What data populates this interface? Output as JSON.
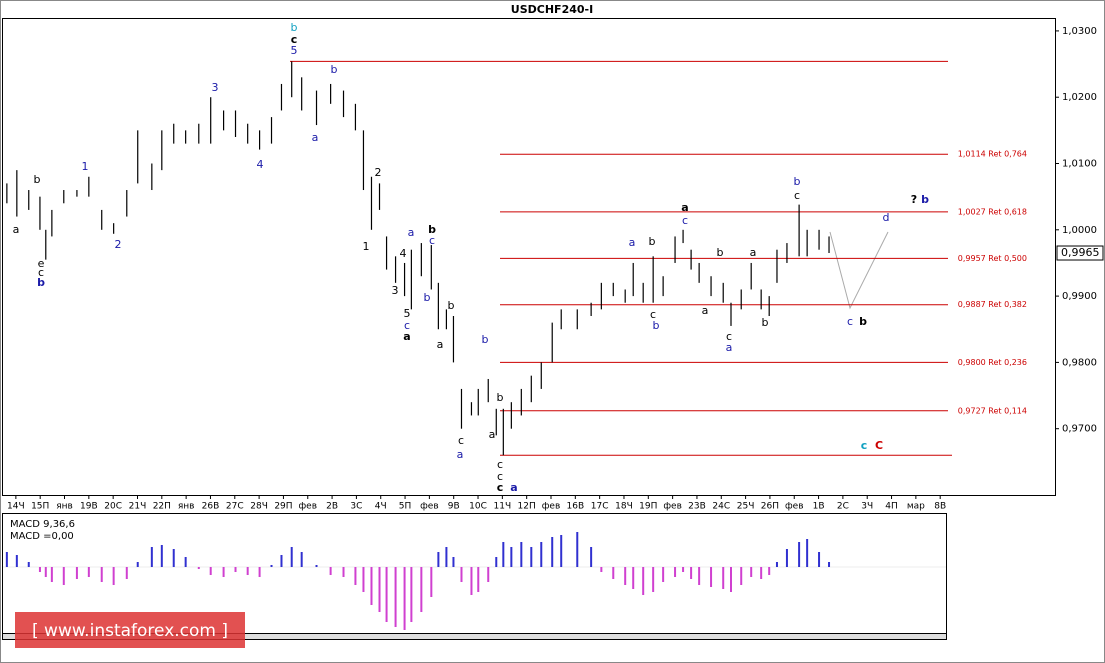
{
  "chart_data": {
    "type": "ohlc",
    "title": "USDCHF240-I",
    "xlim": [
      -0.57,
      42.72
    ],
    "ylim": [
      0.96,
      1.0324
    ],
    "xticks": [
      {
        "value": 0,
        "label": "14Ч"
      },
      {
        "value": 1,
        "label": "15П"
      },
      {
        "value": 2,
        "label": "янв"
      },
      {
        "value": 3,
        "label": "19В"
      },
      {
        "value": 4,
        "label": "20С"
      },
      {
        "value": 5,
        "label": "21Ч"
      },
      {
        "value": 6,
        "label": "22П"
      },
      {
        "value": 7,
        "label": "янв"
      },
      {
        "value": 8,
        "label": "26В"
      },
      {
        "value": 9,
        "label": "27С"
      },
      {
        "value": 10,
        "label": "28Ч"
      },
      {
        "value": 11,
        "label": "29П"
      },
      {
        "value": 12,
        "label": "фев"
      },
      {
        "value": 13,
        "label": "2В"
      },
      {
        "value": 14,
        "label": "3С"
      },
      {
        "value": 15,
        "label": "4Ч"
      },
      {
        "value": 16,
        "label": "5П"
      },
      {
        "value": 17,
        "label": "фев"
      },
      {
        "value": 18,
        "label": "9В"
      },
      {
        "value": 19,
        "label": "10С"
      },
      {
        "value": 20,
        "label": "11Ч"
      },
      {
        "value": 21,
        "label": "12П"
      },
      {
        "value": 22,
        "label": "фев"
      },
      {
        "value": 23,
        "label": "16В"
      },
      {
        "value": 24,
        "label": "17С"
      },
      {
        "value": 25,
        "label": "18Ч"
      },
      {
        "value": 26,
        "label": "19П"
      },
      {
        "value": 27,
        "label": "фев"
      },
      {
        "value": 28,
        "label": "23В"
      },
      {
        "value": 29,
        "label": "24С"
      },
      {
        "value": 30,
        "label": "25Ч"
      },
      {
        "value": 31,
        "label": "26П"
      },
      {
        "value": 32,
        "label": "фев"
      },
      {
        "value": 33,
        "label": "1В"
      },
      {
        "value": 34,
        "label": "2С"
      },
      {
        "value": 35,
        "label": "3Ч"
      },
      {
        "value": 36,
        "label": "4П"
      },
      {
        "value": 37,
        "label": "мар"
      },
      {
        "value": 38,
        "label": "8В"
      }
    ],
    "yticks": [
      {
        "value": 1.03,
        "label": "1,0300"
      },
      {
        "value": 1.02,
        "label": "1,0200"
      },
      {
        "value": 1.01,
        "label": "1,0100"
      },
      {
        "value": 1.0,
        "label": "1,0000"
      },
      {
        "value": 0.99,
        "label": "0,9900"
      },
      {
        "value": 0.98,
        "label": "0,9800"
      },
      {
        "value": 0.97,
        "label": "0,9700"
      }
    ],
    "last_price": {
      "value": 0.9965,
      "label": "0,9965"
    },
    "bar_color": "#000000",
    "level_color": "#cc0000",
    "levels": [
      {
        "value": 1.0254
      },
      {
        "value": 1.0114,
        "label": "1,0114 Ret 0,764"
      },
      {
        "value": 1.0027,
        "label": "1,0027 Ret 0,618"
      },
      {
        "value": 0.9957,
        "label": "0,9957 Ret 0,500"
      },
      {
        "value": 0.9887,
        "label": "0,9887 Ret 0,382"
      },
      {
        "value": 0.98,
        "label": "0,9800 Ret 0,236"
      },
      {
        "value": 0.9727,
        "label": "0,9727 Ret 0,114"
      },
      {
        "value": 0.966
      }
    ],
    "macd_title": "MACD 9,36,6",
    "macd_value": "MACD =0,00",
    "macd_ylim": [
      -0.0065,
      0.0052
    ],
    "macd_color_up": "#3030d0",
    "macd_color_down": "#d040d0",
    "bars": [
      {
        "x": -0.37,
        "high": 1.007,
        "low": 1.004,
        "macd": 0.0015
      },
      {
        "x": 0.04,
        "high": 1.009,
        "low": 1.002,
        "macd": 0.0012
      },
      {
        "x": 0.53,
        "high": 1.006,
        "low": 1.003,
        "macd": 0.0005
      },
      {
        "x": 0.99,
        "high": 1.005,
        "low": 1.0,
        "macd": -0.0005
      },
      {
        "x": 1.23,
        "high": 1.0,
        "low": 0.9955,
        "macd": -0.001
      },
      {
        "x": 1.48,
        "high": 1.003,
        "low": 0.999,
        "macd": -0.0015
      },
      {
        "x": 1.97,
        "high": 1.006,
        "low": 1.004,
        "macd": -0.0018
      },
      {
        "x": 2.51,
        "high": 1.006,
        "low": 1.005,
        "macd": -0.0012
      },
      {
        "x": 3.0,
        "high": 1.008,
        "low": 1.005,
        "macd": -0.001
      },
      {
        "x": 3.53,
        "high": 1.003,
        "low": 1.0,
        "macd": -0.0015
      },
      {
        "x": 4.02,
        "high": 1.001,
        "low": 0.9994,
        "macd": -0.0018
      },
      {
        "x": 4.56,
        "high": 1.006,
        "low": 1.002,
        "macd": -0.0012
      },
      {
        "x": 5.01,
        "high": 1.015,
        "low": 1.007,
        "macd": 0.0005
      },
      {
        "x": 5.59,
        "high": 1.01,
        "low": 1.006,
        "macd": 0.002
      },
      {
        "x": 6.0,
        "high": 1.015,
        "low": 1.009,
        "macd": 0.0022
      },
      {
        "x": 6.49,
        "high": 1.016,
        "low": 1.013,
        "macd": 0.0018
      },
      {
        "x": 6.98,
        "high": 1.015,
        "low": 1.013,
        "macd": 0.001
      },
      {
        "x": 7.52,
        "high": 1.016,
        "low": 1.013,
        "macd": -0.0002
      },
      {
        "x": 8.01,
        "high": 1.02,
        "low": 1.013,
        "macd": -0.0008
      },
      {
        "x": 8.54,
        "high": 1.018,
        "low": 1.015,
        "macd": -0.001
      },
      {
        "x": 9.03,
        "high": 1.018,
        "low": 1.014,
        "macd": -0.0005
      },
      {
        "x": 9.53,
        "high": 1.016,
        "low": 1.013,
        "macd": -0.0008
      },
      {
        "x": 10.02,
        "high": 1.015,
        "low": 1.0121,
        "macd": -0.001
      },
      {
        "x": 10.51,
        "high": 1.017,
        "low": 1.013,
        "macd": 0.0002
      },
      {
        "x": 10.92,
        "high": 1.022,
        "low": 1.018,
        "macd": 0.0012
      },
      {
        "x": 11.34,
        "high": 1.0254,
        "low": 1.02,
        "macd": 0.002
      },
      {
        "x": 11.75,
        "high": 1.023,
        "low": 1.018,
        "macd": 0.0015
      },
      {
        "x": 12.36,
        "high": 1.021,
        "low": 1.0158,
        "macd": 0.0002
      },
      {
        "x": 12.94,
        "high": 1.022,
        "low": 1.019,
        "macd": -0.0008
      },
      {
        "x": 13.47,
        "high": 1.021,
        "low": 1.017,
        "macd": -0.001
      },
      {
        "x": 13.96,
        "high": 1.019,
        "low": 1.015,
        "macd": -0.0018
      },
      {
        "x": 14.29,
        "high": 1.015,
        "low": 1.006,
        "macd": -0.0025
      },
      {
        "x": 14.62,
        "high": 1.008,
        "low": 1.0,
        "macd": -0.0038
      },
      {
        "x": 14.95,
        "high": 1.007,
        "low": 1.003,
        "macd": -0.0045
      },
      {
        "x": 15.24,
        "high": 0.999,
        "low": 0.994,
        "macd": -0.0055
      },
      {
        "x": 15.61,
        "high": 0.996,
        "low": 0.992,
        "macd": -0.006
      },
      {
        "x": 15.98,
        "high": 0.995,
        "low": 0.99,
        "macd": -0.0063
      },
      {
        "x": 16.26,
        "high": 0.997,
        "low": 0.988,
        "macd": -0.0055
      },
      {
        "x": 16.67,
        "high": 0.998,
        "low": 0.993,
        "macd": -0.0045
      },
      {
        "x": 17.08,
        "high": 0.9977,
        "low": 0.991,
        "macd": -0.003
      },
      {
        "x": 17.37,
        "high": 0.992,
        "low": 0.985,
        "macd": 0.0015
      },
      {
        "x": 17.7,
        "high": 0.988,
        "low": 0.985,
        "macd": 0.002
      },
      {
        "x": 17.99,
        "high": 0.987,
        "low": 0.98,
        "macd": 0.001
      },
      {
        "x": 18.32,
        "high": 0.976,
        "low": 0.97,
        "macd": -0.0015
      },
      {
        "x": 18.73,
        "high": 0.974,
        "low": 0.972,
        "macd": -0.0028
      },
      {
        "x": 19.01,
        "high": 0.976,
        "low": 0.972,
        "macd": -0.0025
      },
      {
        "x": 19.42,
        "high": 0.9775,
        "low": 0.974,
        "macd": -0.0015
      },
      {
        "x": 19.75,
        "high": 0.973,
        "low": 0.969,
        "macd": 0.001
      },
      {
        "x": 20.04,
        "high": 0.973,
        "low": 0.966,
        "macd": 0.0025
      },
      {
        "x": 20.37,
        "high": 0.974,
        "low": 0.97,
        "macd": 0.002
      },
      {
        "x": 20.78,
        "high": 0.976,
        "low": 0.972,
        "macd": 0.0025
      },
      {
        "x": 21.19,
        "high": 0.978,
        "low": 0.974,
        "macd": 0.002
      },
      {
        "x": 21.6,
        "high": 0.98,
        "low": 0.976,
        "macd": 0.0025
      },
      {
        "x": 22.05,
        "high": 0.986,
        "low": 0.98,
        "macd": 0.003
      },
      {
        "x": 22.42,
        "high": 0.988,
        "low": 0.985,
        "macd": 0.0032
      },
      {
        "x": 23.08,
        "high": 0.988,
        "low": 0.985,
        "macd": 0.0035
      },
      {
        "x": 23.65,
        "high": 0.989,
        "low": 0.987,
        "macd": 0.002
      },
      {
        "x": 24.07,
        "high": 0.992,
        "low": 0.988,
        "macd": -0.0005
      },
      {
        "x": 24.56,
        "high": 0.992,
        "low": 0.99,
        "macd": -0.0012
      },
      {
        "x": 25.05,
        "high": 0.991,
        "low": 0.989,
        "macd": -0.0018
      },
      {
        "x": 25.38,
        "high": 0.995,
        "low": 0.99,
        "macd": -0.0022
      },
      {
        "x": 25.79,
        "high": 0.992,
        "low": 0.989,
        "macd": -0.0028
      },
      {
        "x": 26.2,
        "high": 0.996,
        "low": 0.989,
        "macd": -0.0025
      },
      {
        "x": 26.61,
        "high": 0.993,
        "low": 0.99,
        "macd": -0.0015
      },
      {
        "x": 27.1,
        "high": 0.999,
        "low": 0.995,
        "macd": -0.001
      },
      {
        "x": 27.43,
        "high": 1.0,
        "low": 0.998,
        "macd": -0.0005
      },
      {
        "x": 27.76,
        "high": 0.997,
        "low": 0.994,
        "macd": -0.0012
      },
      {
        "x": 28.09,
        "high": 0.995,
        "low": 0.992,
        "macd": -0.0018
      },
      {
        "x": 28.58,
        "high": 0.993,
        "low": 0.99,
        "macd": -0.002
      },
      {
        "x": 29.08,
        "high": 0.992,
        "low": 0.989,
        "macd": -0.0022
      },
      {
        "x": 29.4,
        "high": 0.989,
        "low": 0.9855,
        "macd": -0.0025
      },
      {
        "x": 29.82,
        "high": 0.991,
        "low": 0.988,
        "macd": -0.0018
      },
      {
        "x": 30.23,
        "high": 0.995,
        "low": 0.991,
        "macd": -0.001
      },
      {
        "x": 30.64,
        "high": 0.991,
        "low": 0.988,
        "macd": -0.0012
      },
      {
        "x": 30.97,
        "high": 0.99,
        "low": 0.987,
        "macd": -0.0008
      },
      {
        "x": 31.29,
        "high": 0.997,
        "low": 0.992,
        "macd": 0.0005
      },
      {
        "x": 31.7,
        "high": 0.998,
        "low": 0.995,
        "macd": 0.0018
      },
      {
        "x": 32.2,
        "high": 1.0038,
        "low": 0.996,
        "macd": 0.0025
      },
      {
        "x": 32.53,
        "high": 1.0,
        "low": 0.996,
        "macd": 0.0028
      },
      {
        "x": 33.02,
        "high": 1.0,
        "low": 0.997,
        "macd": 0.0015
      },
      {
        "x": 33.43,
        "high": 0.999,
        "low": 0.9965,
        "macd": 0.0005
      }
    ],
    "wave_labels": [
      "b",
      "c",
      "5",
      "3",
      "1",
      "2",
      "4",
      "a",
      "b",
      "2",
      "1",
      "b",
      "c",
      "a",
      "4",
      "3",
      "5",
      "c",
      "a",
      "b",
      "b",
      "a",
      "c",
      "a",
      "b",
      "b",
      "a",
      "c",
      "c",
      "c",
      "a",
      "e",
      "c",
      "b",
      "b",
      "a",
      "a",
      "b",
      "c",
      "b",
      "a",
      "c",
      "b",
      "a",
      "c",
      "a",
      "a",
      "b",
      "b",
      "c",
      "d",
      "c",
      "b",
      "c",
      "C",
      "?",
      "b"
    ],
    "watermark": "[ www.instaforex.com ]"
  }
}
